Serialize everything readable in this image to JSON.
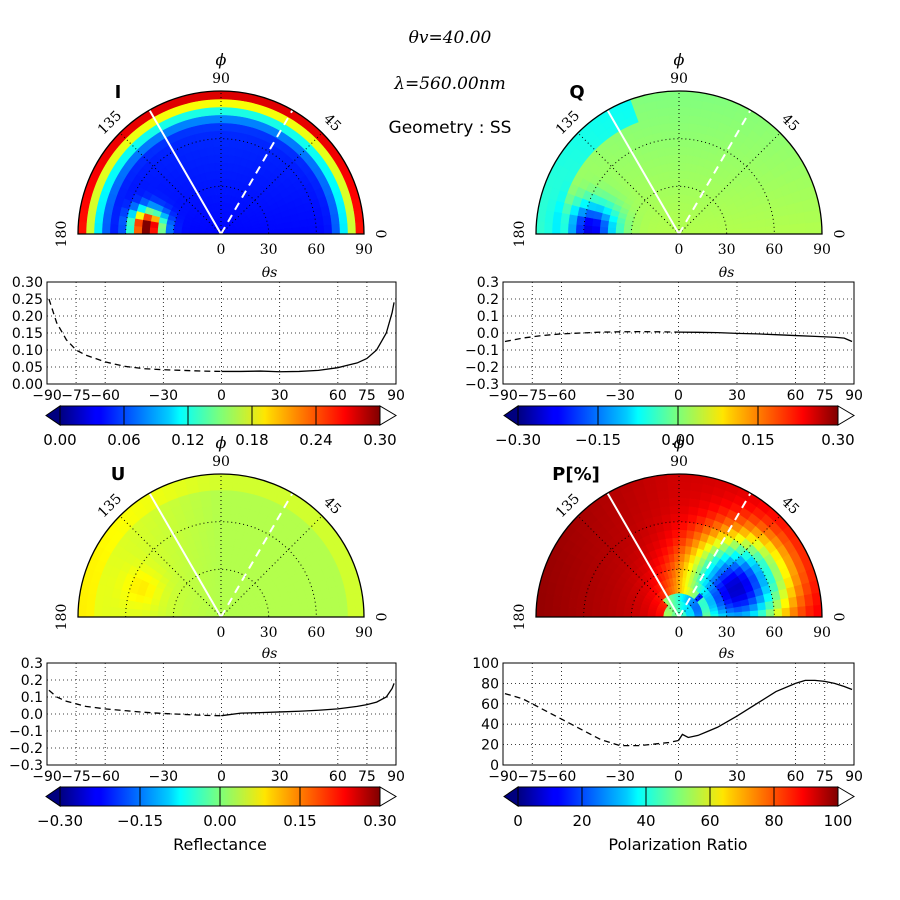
{
  "header": {
    "view_zenith": "θv=40.00",
    "wavelength": "λ=560.00nm",
    "geometry": "Geometry : SS"
  },
  "polar_axis": {
    "phi_label": "ϕ",
    "theta_s_label": "θs",
    "angle_labels": [
      "180",
      "135",
      "90",
      "45",
      "0"
    ],
    "radial_ticks": [
      "0",
      "30",
      "60",
      "90"
    ]
  },
  "panels": [
    {
      "id": "I",
      "title": "I",
      "field": "intensity",
      "colorbar": {
        "min": 0,
        "max": 0.3,
        "ticks": [
          "0.00",
          "0.06",
          "0.12",
          "0.18",
          "0.24",
          "0.30"
        ],
        "label": ""
      }
    },
    {
      "id": "Q",
      "title": "Q",
      "field": "q",
      "colorbar": {
        "min": -0.3,
        "max": 0.3,
        "ticks": [
          "−0.30",
          "−0.15",
          "0.00",
          "0.15",
          "0.30"
        ],
        "label": ""
      }
    },
    {
      "id": "U",
      "title": "U",
      "field": "u",
      "colorbar": {
        "min": -0.3,
        "max": 0.3,
        "ticks": [
          "−0.30",
          "−0.15",
          "0.00",
          "0.15",
          "0.30"
        ],
        "label": "Reflectance"
      }
    },
    {
      "id": "P",
      "title": "P[%]",
      "field": "p",
      "colorbar": {
        "min": 0,
        "max": 100,
        "ticks": [
          "0",
          "20",
          "40",
          "60",
          "80",
          "100"
        ],
        "label": "Polarization Ratio"
      }
    }
  ],
  "chart_data": [
    {
      "type": "line",
      "panel": "I",
      "xlabel": "θs",
      "xlim": [
        -90,
        90
      ],
      "ylim": [
        0,
        0.3
      ],
      "xticks": [
        "−90",
        "−75",
        "−60",
        "−30",
        "0",
        "30",
        "60",
        "75",
        "90"
      ],
      "yticks": [
        "0.00",
        "0.05",
        "0.10",
        "0.15",
        "0.20",
        "0.25",
        "0.30"
      ],
      "grid": true,
      "x": [
        -89,
        -85,
        -80,
        -75,
        -70,
        -60,
        -50,
        -40,
        -30,
        -20,
        -10,
        0,
        10,
        20,
        30,
        40,
        50,
        60,
        65,
        70,
        75,
        80,
        85,
        88,
        89
      ],
      "y": [
        0.25,
        0.18,
        0.13,
        0.1,
        0.085,
        0.065,
        0.052,
        0.045,
        0.042,
        0.04,
        0.038,
        0.037,
        0.037,
        0.038,
        0.036,
        0.037,
        0.04,
        0.048,
        0.055,
        0.062,
        0.075,
        0.1,
        0.15,
        0.21,
        0.24
      ]
    },
    {
      "type": "line",
      "panel": "Q",
      "xlabel": "θs",
      "xlim": [
        -90,
        90
      ],
      "ylim": [
        -0.3,
        0.3
      ],
      "xticks": [
        "−90",
        "−75",
        "−60",
        "−30",
        "0",
        "30",
        "60",
        "75",
        "90"
      ],
      "yticks": [
        "0.3",
        "0.2",
        "0.1",
        "0.0",
        "−0.1",
        "−0.2",
        "−0.3"
      ],
      "grid": true,
      "x": [
        -89,
        -80,
        -70,
        -60,
        -50,
        -40,
        -30,
        -20,
        -10,
        0,
        10,
        20,
        30,
        40,
        50,
        60,
        70,
        80,
        85,
        89
      ],
      "y": [
        -0.05,
        -0.03,
        -0.015,
        -0.005,
        0.0,
        0.005,
        0.007,
        0.008,
        0.007,
        0.005,
        0.004,
        0.002,
        -0.002,
        -0.005,
        -0.01,
        -0.015,
        -0.02,
        -0.025,
        -0.03,
        -0.05
      ]
    },
    {
      "type": "line",
      "panel": "U",
      "xlabel": "θs",
      "xlim": [
        -90,
        90
      ],
      "ylim": [
        -0.3,
        0.3
      ],
      "xticks": [
        "−90",
        "−75",
        "−60",
        "−30",
        "0",
        "30",
        "60",
        "75",
        "90"
      ],
      "yticks": [
        "0.3",
        "0.2",
        "0.1",
        "0.0",
        "−0.1",
        "−0.2",
        "−0.3"
      ],
      "grid": true,
      "x": [
        -89,
        -85,
        -80,
        -70,
        -60,
        -50,
        -40,
        -30,
        -20,
        -10,
        0,
        10,
        20,
        30,
        40,
        50,
        60,
        70,
        75,
        80,
        85,
        88,
        89
      ],
      "y": [
        0.14,
        0.1,
        0.075,
        0.045,
        0.03,
        0.02,
        0.01,
        0.003,
        -0.002,
        -0.008,
        -0.01,
        0.005,
        0.008,
        0.012,
        0.016,
        0.022,
        0.03,
        0.045,
        0.055,
        0.07,
        0.1,
        0.15,
        0.18
      ]
    },
    {
      "type": "line",
      "panel": "P[%]",
      "xlabel": "θs",
      "xlim": [
        -90,
        90
      ],
      "ylim": [
        0,
        100
      ],
      "xticks": [
        "−90",
        "−75",
        "−60",
        "−30",
        "0",
        "30",
        "60",
        "75",
        "90"
      ],
      "yticks": [
        "100",
        "80",
        "60",
        "40",
        "20",
        "0"
      ],
      "grid": true,
      "x": [
        -89,
        -80,
        -70,
        -60,
        -50,
        -40,
        -30,
        -20,
        -10,
        -5,
        0,
        2,
        5,
        10,
        15,
        20,
        30,
        40,
        50,
        60,
        65,
        70,
        75,
        80,
        85,
        89
      ],
      "y": [
        70,
        65,
        55,
        45,
        35,
        25,
        19,
        19,
        21,
        22,
        24,
        30,
        27,
        29,
        33,
        37,
        48,
        60,
        72,
        80,
        83,
        83,
        82,
        80,
        77,
        74
      ]
    }
  ]
}
